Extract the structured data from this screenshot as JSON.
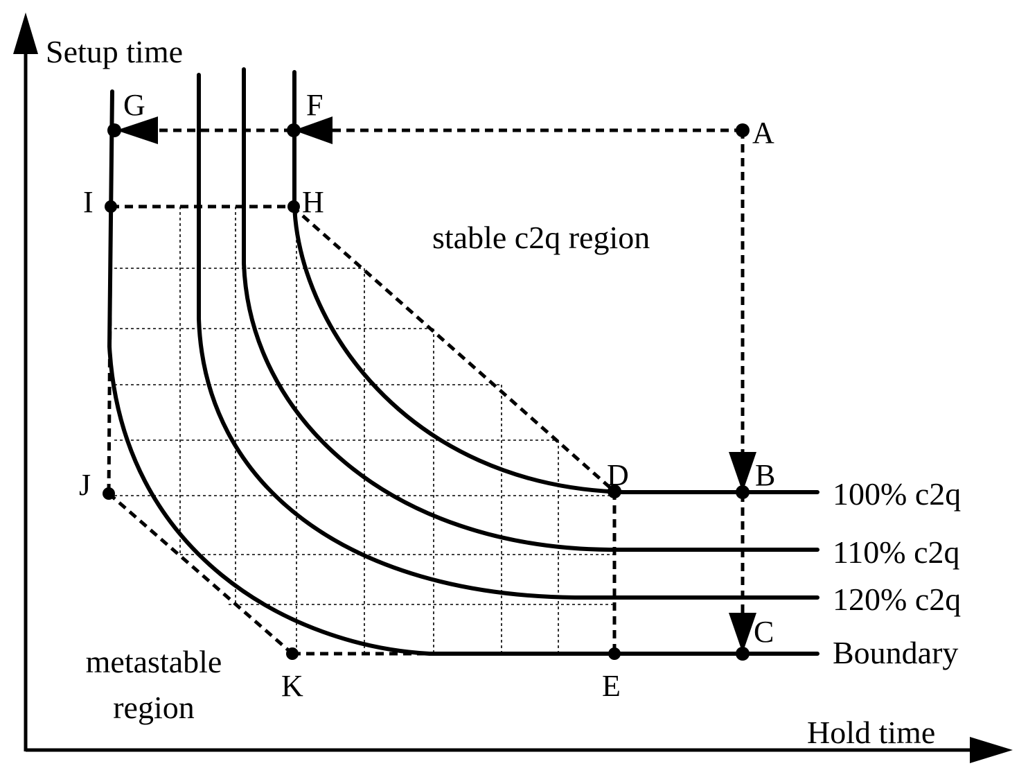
{
  "axes": {
    "y_title": "Setup time",
    "x_title": "Hold time"
  },
  "regions": {
    "stable": "stable c2q region",
    "metastable_line1": "metastable",
    "metastable_line2": "region"
  },
  "points": {
    "A": "A",
    "B": "B",
    "C": "C",
    "D": "D",
    "E": "E",
    "F": "F",
    "G": "G",
    "H": "H",
    "I": "I",
    "J": "J",
    "K": "K"
  },
  "curves": [
    {
      "key": "c100",
      "label": "100% c2q"
    },
    {
      "key": "c110",
      "label": "110% c2q"
    },
    {
      "key": "c120",
      "label": "120% c2q"
    },
    {
      "key": "boundary",
      "label": "Boundary"
    }
  ]
}
